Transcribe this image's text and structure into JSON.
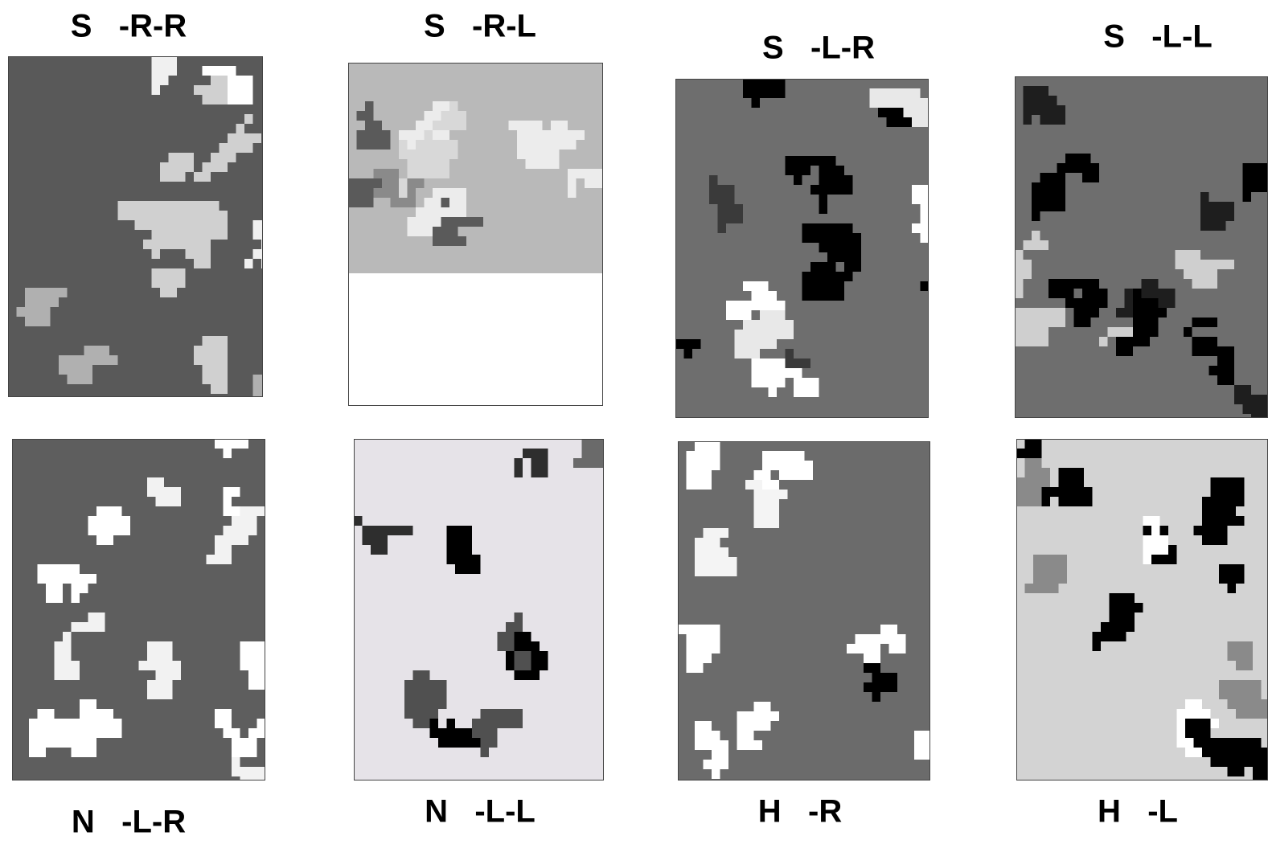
{
  "panels": [
    {
      "label": "S   -R-R"
    },
    {
      "label": "S   -R-L"
    },
    {
      "label": "S   -L-R"
    },
    {
      "label": "S   -L-L"
    },
    {
      "label": "N   -L-R"
    },
    {
      "label": "N   -L-L"
    },
    {
      "label": "H   -R"
    },
    {
      "label": "H   -L"
    }
  ]
}
